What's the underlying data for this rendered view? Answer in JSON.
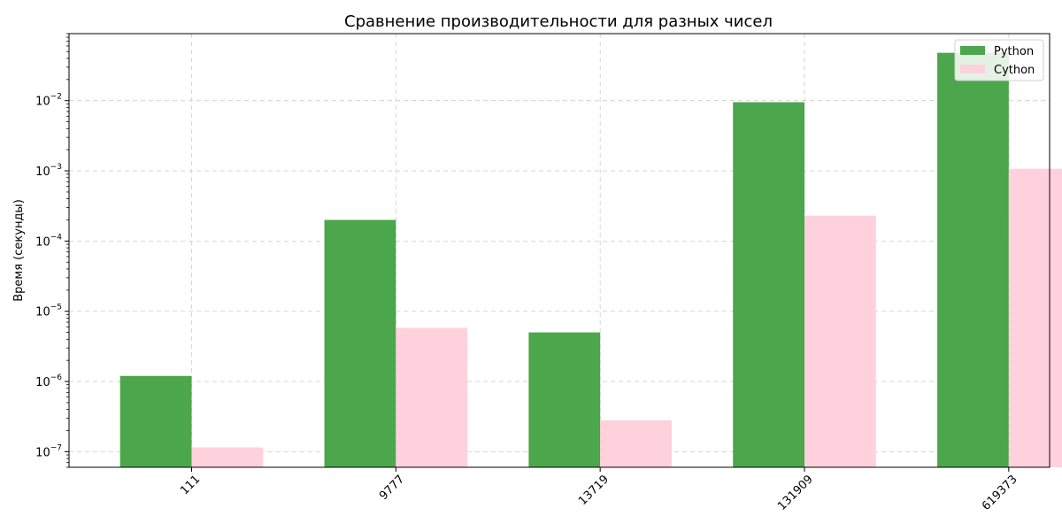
{
  "chart_data": {
    "type": "bar",
    "title": "Сравнение производительности для разных чисел",
    "xlabel": "",
    "ylabel": "Время (секунды)",
    "yscale": "log",
    "ylim": [
      6e-08,
      0.09
    ],
    "categories": [
      "111",
      "9777",
      "13719",
      "131909",
      "619373"
    ],
    "series": [
      {
        "name": "Python",
        "color": "#4ca64c",
        "values": [
          1.2e-06,
          0.0002,
          5e-06,
          0.0095,
          0.048
        ]
      },
      {
        "name": "Cython",
        "color": "#ffd1dc",
        "values": [
          1.15e-07,
          5.8e-06,
          2.8e-07,
          0.00023,
          0.00107
        ]
      }
    ],
    "yticks": [
      {
        "value": 1e-07,
        "base": "10",
        "exp": "−7"
      },
      {
        "value": 1e-06,
        "base": "10",
        "exp": "−6"
      },
      {
        "value": 1e-05,
        "base": "10",
        "exp": "−5"
      },
      {
        "value": 0.0001,
        "base": "10",
        "exp": "−4"
      },
      {
        "value": 0.001,
        "base": "10",
        "exp": "−3"
      },
      {
        "value": 0.01,
        "base": "10",
        "exp": "−2"
      }
    ],
    "grid": true,
    "legend_position": "top-right"
  }
}
